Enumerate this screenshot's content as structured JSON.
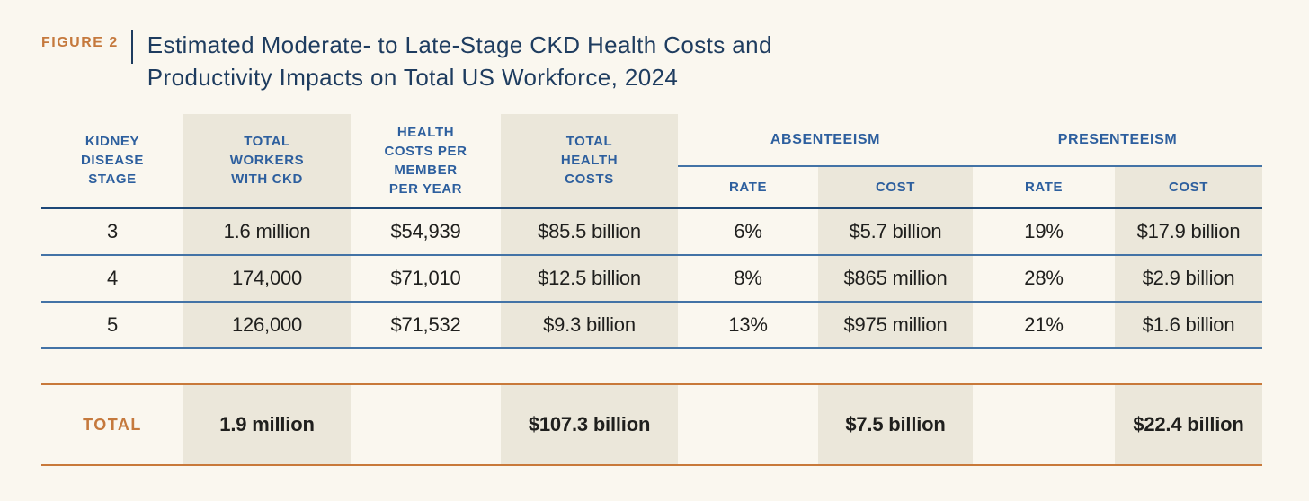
{
  "figure": {
    "label": "FIGURE 2",
    "title_line1": "Estimated Moderate- to Late-Stage CKD Health Costs and",
    "title_line2": "Productivity Impacts on Total US Workforce, 2024"
  },
  "table": {
    "headers": {
      "stage": "KIDNEY\nDISEASE\nSTAGE",
      "workers": "TOTAL\nWORKERS\nWITH CKD",
      "cost_per_member": "HEALTH\nCOSTS PER\nMEMBER\nPER YEAR",
      "total_health_costs": "TOTAL\nHEALTH\nCOSTS",
      "group_absenteeism": "ABSENTEEISM",
      "group_presenteeism": "PRESENTEEISM",
      "sub_rate": "RATE",
      "sub_cost": "COST"
    },
    "rows": [
      {
        "stage": "3",
        "workers": "1.6 million",
        "cost_per_member": "$54,939",
        "total_health_costs": "$85.5 billion",
        "absenteeism_rate": "6%",
        "absenteeism_cost": "$5.7 billion",
        "presenteeism_rate": "19%",
        "presenteeism_cost": "$17.9 billion"
      },
      {
        "stage": "4",
        "workers": "174,000",
        "cost_per_member": "$71,010",
        "total_health_costs": "$12.5 billion",
        "absenteeism_rate": "8%",
        "absenteeism_cost": "$865 million",
        "presenteeism_rate": "28%",
        "presenteeism_cost": "$2.9 billion"
      },
      {
        "stage": "5",
        "workers": "126,000",
        "cost_per_member": "$71,532",
        "total_health_costs": "$9.3 billion",
        "absenteeism_rate": "13%",
        "absenteeism_cost": "$975 million",
        "presenteeism_rate": "21%",
        "presenteeism_cost": "$1.6 billion"
      }
    ],
    "total": {
      "label": "TOTAL",
      "workers": "1.9 million",
      "total_health_costs": "$107.3 billion",
      "absenteeism_cost": "$7.5 billion",
      "presenteeism_cost": "$22.4 billion"
    }
  },
  "colors": {
    "accent_orange": "#c5793d",
    "header_blue": "#2d5f9e",
    "title_navy": "#1e3c5f",
    "row_line_blue": "#4373a6",
    "header_line_navy": "#1d4878",
    "shade_beige": "#ebe7da",
    "background": "#faf7ef"
  }
}
